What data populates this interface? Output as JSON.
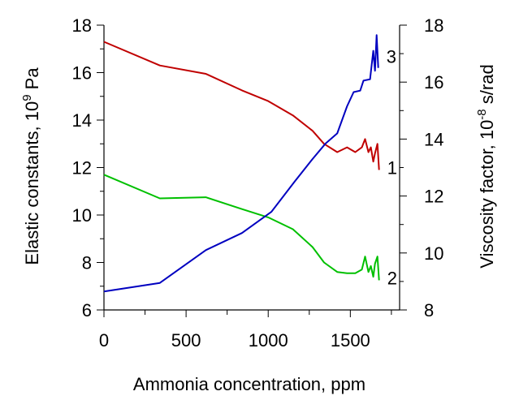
{
  "chart_data": {
    "type": "line",
    "xlabel": "Ammonia concentration, ppm",
    "ylabel_left": {
      "main": "Elastic constants, 10",
      "sup": "9",
      "unit": " Pa"
    },
    "ylabel_right": {
      "main": "Viscosity factor, 10",
      "sup": "-8",
      "unit": " s/rad"
    },
    "xlim": [
      0,
      1800
    ],
    "ylim_left": [
      6,
      18
    ],
    "ylim_right": [
      8,
      18
    ],
    "x_ticks": [
      0,
      500,
      1000,
      1500
    ],
    "y_ticks_left": [
      6,
      8,
      10,
      12,
      14,
      16,
      18
    ],
    "y_ticks_right": [
      8,
      10,
      12,
      14,
      16,
      18
    ],
    "grid": false,
    "series": [
      {
        "name": "1",
        "axis": "left",
        "color": "#c00000",
        "x": [
          0,
          340,
          620,
          840,
          1000,
          1150,
          1270,
          1340,
          1420,
          1480,
          1530,
          1570,
          1590,
          1610,
          1625,
          1640,
          1650,
          1665,
          1675
        ],
        "y": [
          17.3,
          16.3,
          15.95,
          15.25,
          14.8,
          14.2,
          13.55,
          13.0,
          12.65,
          12.85,
          12.65,
          12.85,
          13.2,
          12.65,
          12.85,
          12.25,
          12.6,
          13.0,
          11.9
        ]
      },
      {
        "name": "2",
        "axis": "left",
        "color": "#00c000",
        "x": [
          0,
          340,
          620,
          840,
          1000,
          1150,
          1270,
          1340,
          1420,
          1480,
          1530,
          1570,
          1590,
          1610,
          1625,
          1640,
          1650,
          1665,
          1675
        ],
        "y": [
          11.7,
          10.7,
          10.75,
          10.25,
          9.9,
          9.4,
          8.65,
          8.0,
          7.6,
          7.55,
          7.55,
          7.7,
          8.25,
          7.6,
          7.85,
          7.4,
          7.95,
          8.25,
          7.25
        ]
      },
      {
        "name": "3",
        "axis": "right",
        "color": "#0000c0",
        "x": [
          0,
          340,
          620,
          840,
          1020,
          1160,
          1270,
          1350,
          1420,
          1480,
          1520,
          1560,
          1580,
          1620,
          1640,
          1650,
          1660,
          1670
        ],
        "y": [
          8.65,
          8.95,
          10.1,
          10.7,
          11.45,
          12.5,
          13.3,
          13.85,
          14.2,
          15.15,
          15.65,
          15.7,
          16.05,
          16.1,
          17.1,
          16.4,
          17.65,
          16.5
        ]
      }
    ]
  }
}
